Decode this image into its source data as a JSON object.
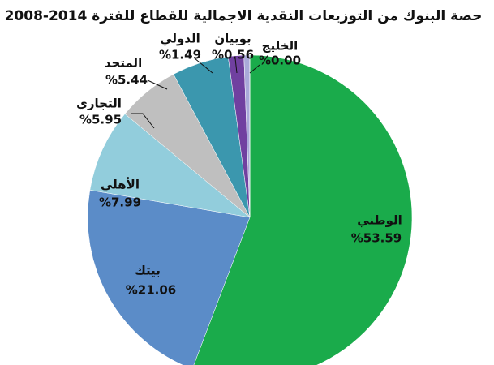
{
  "chart_data": {
    "type": "pie",
    "title": "حصة البنوك من التوزيعات النقدية الاجمالية للقطاع للفترة 2014-2008",
    "categories": [
      "الوطني",
      "بيتك",
      "الأهلي",
      "التجاري",
      "المتحد",
      "الدولي",
      "بوبيان",
      "الخليج"
    ],
    "values": [
      53.59,
      21.06,
      7.99,
      5.95,
      5.44,
      1.49,
      0.56,
      0.0
    ],
    "value_labels": [
      "%53.59",
      "%21.06",
      "%7.99",
      "%5.95",
      "%5.44",
      "%1.49",
      "%0.56",
      "%0.00"
    ],
    "colors": [
      "#1aab4b",
      "#5b8cc8",
      "#92cddc",
      "#bfbfbf",
      "#3b97ae",
      "#7040a0",
      "#a9a9d9",
      "#e8262a"
    ]
  }
}
